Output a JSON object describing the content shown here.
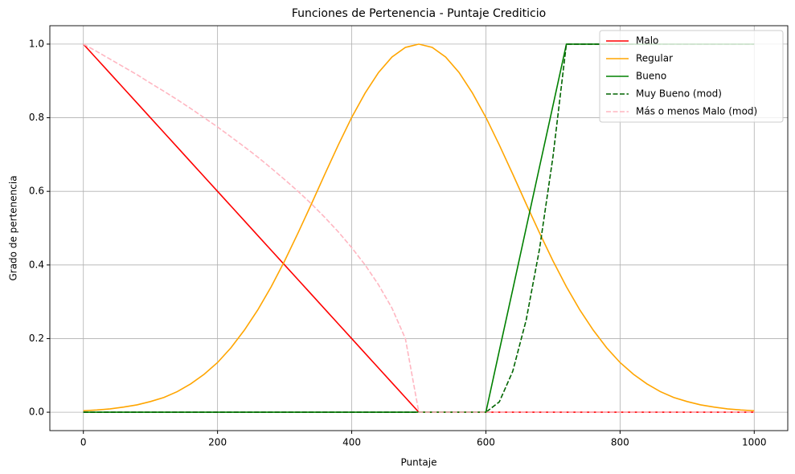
{
  "chart_data": {
    "type": "line",
    "title": "Funciones de Pertenencia - Puntaje Crediticio",
    "x_label": "Puntaje",
    "y_label": "Grado de pertenencia",
    "x": [
      0,
      20,
      40,
      60,
      80,
      100,
      120,
      140,
      160,
      180,
      200,
      220,
      240,
      260,
      280,
      300,
      320,
      340,
      360,
      380,
      400,
      420,
      440,
      460,
      480,
      500,
      520,
      540,
      560,
      580,
      600,
      620,
      640,
      660,
      680,
      700,
      720,
      740,
      760,
      780,
      800,
      820,
      840,
      860,
      880,
      900,
      920,
      940,
      960,
      980,
      1000
    ],
    "series": [
      {
        "name": "Malo",
        "color": "#ff0000",
        "dash": false,
        "values": [
          1,
          0.96,
          0.92,
          0.88,
          0.84,
          0.8,
          0.76,
          0.72,
          0.68,
          0.64,
          0.6,
          0.56,
          0.52,
          0.48,
          0.44,
          0.4,
          0.36,
          0.32,
          0.28,
          0.24,
          0.2,
          0.16,
          0.12,
          0.08,
          0.04,
          0,
          0,
          0,
          0,
          0,
          0,
          0,
          0,
          0,
          0,
          0,
          0,
          0,
          0,
          0,
          0,
          0,
          0,
          0,
          0,
          0,
          0,
          0,
          0,
          0,
          0
        ]
      },
      {
        "name": "Regular",
        "color": "#ffa500",
        "dash": false,
        "values": [
          0.004,
          0.006,
          0.009,
          0.014,
          0.02,
          0.029,
          0.04,
          0.056,
          0.077,
          0.103,
          0.135,
          0.175,
          0.223,
          0.278,
          0.341,
          0.411,
          0.487,
          0.566,
          0.647,
          0.726,
          0.801,
          0.867,
          0.923,
          0.965,
          0.991,
          1,
          0.991,
          0.965,
          0.923,
          0.867,
          0.801,
          0.726,
          0.647,
          0.566,
          0.487,
          0.411,
          0.341,
          0.278,
          0.223,
          0.175,
          0.135,
          0.103,
          0.077,
          0.056,
          0.04,
          0.029,
          0.02,
          0.014,
          0.009,
          0.006,
          0.004
        ]
      },
      {
        "name": "Bueno",
        "color": "#008000",
        "dash": false,
        "values": [
          0,
          0,
          0,
          0,
          0,
          0,
          0,
          0,
          0,
          0,
          0,
          0,
          0,
          0,
          0,
          0,
          0,
          0,
          0,
          0,
          0,
          0,
          0,
          0,
          0,
          0,
          0,
          0,
          0,
          0,
          0,
          0.167,
          0.333,
          0.5,
          0.667,
          0.833,
          1,
          1,
          1,
          1,
          1,
          1,
          1,
          1,
          1,
          1,
          1,
          1,
          1,
          1,
          1
        ]
      },
      {
        "name": "Muy Bueno (mod)",
        "color": "#006400",
        "dash": true,
        "values": [
          0,
          0,
          0,
          0,
          0,
          0,
          0,
          0,
          0,
          0,
          0,
          0,
          0,
          0,
          0,
          0,
          0,
          0,
          0,
          0,
          0,
          0,
          0,
          0,
          0,
          0,
          0,
          0,
          0,
          0,
          0,
          0.028,
          0.111,
          0.25,
          0.444,
          0.694,
          1,
          1,
          1,
          1,
          1,
          1,
          1,
          1,
          1,
          1,
          1,
          1,
          1,
          1,
          1
        ]
      },
      {
        "name": "Más o menos Malo (mod)",
        "color": "#ffb6c1",
        "dash": true,
        "values": [
          1,
          0.98,
          0.959,
          0.938,
          0.917,
          0.894,
          0.872,
          0.849,
          0.825,
          0.8,
          0.775,
          0.748,
          0.721,
          0.693,
          0.663,
          0.632,
          0.6,
          0.566,
          0.529,
          0.49,
          0.447,
          0.4,
          0.346,
          0.283,
          0.2,
          0,
          0,
          0,
          0,
          0,
          0,
          0,
          0,
          0,
          0,
          0,
          0,
          0,
          0,
          0,
          0,
          0,
          0,
          0,
          0,
          0,
          0,
          0,
          0,
          0,
          0
        ]
      }
    ],
    "xlim": [
      -50,
      1050
    ],
    "ylim": [
      -0.05,
      1.05
    ],
    "xticks": [
      0,
      200,
      400,
      600,
      800,
      1000
    ],
    "yticks": [
      {
        "value": 0,
        "label": "0.0"
      },
      0.2,
      0.4,
      0.6,
      0.8,
      {
        "value": 1,
        "label": "1.0"
      }
    ],
    "grid": true,
    "legend": "upper right"
  }
}
